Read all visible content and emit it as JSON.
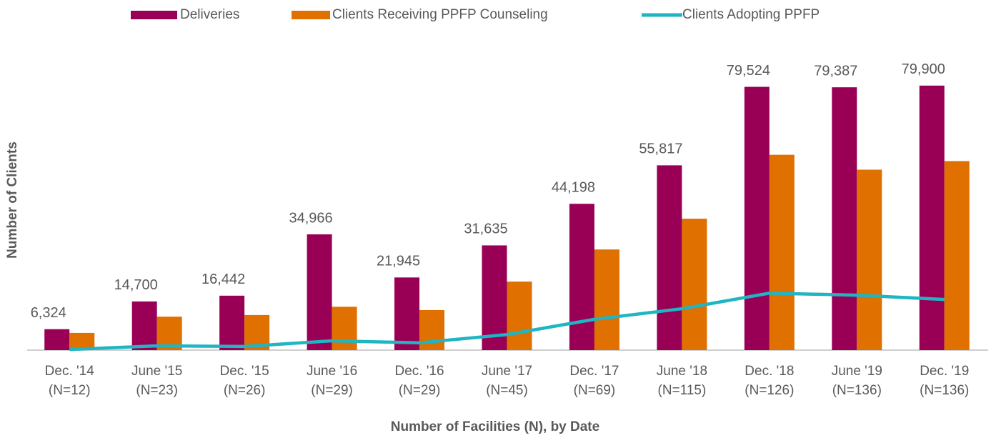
{
  "chart_data": {
    "type": "bar",
    "xlabel": "Number of Facilities (N), by Date",
    "ylabel": "Number of Clients",
    "categories": [
      [
        "Dec. '14",
        "(N=12)"
      ],
      [
        "June '15",
        "(N=23)"
      ],
      [
        "Dec. '15",
        "(N=26)"
      ],
      [
        "June '16",
        "(N=29)"
      ],
      [
        "Dec. '16",
        "(N=29)"
      ],
      [
        "June '17",
        "(N=45)"
      ],
      [
        "Dec. '17",
        "(N=69)"
      ],
      [
        "June '18",
        "(N=115)"
      ],
      [
        "Dec. '18",
        "(N=126)"
      ],
      [
        "June '19",
        "(N=136)"
      ],
      [
        "Dec. '19",
        "(N=136)"
      ]
    ],
    "series": [
      {
        "name": "Deliveries",
        "kind": "bar",
        "color": "#990055",
        "values": [
          6324,
          14700,
          16442,
          34966,
          21945,
          31635,
          44198,
          55817,
          79524,
          79387,
          79900
        ],
        "value_labels": [
          "6,324",
          "14,700",
          "16,442",
          "34,966",
          "21,945",
          "31,635",
          "44,198",
          "55,817",
          "79,524",
          "79,387",
          "79,900"
        ]
      },
      {
        "name": "Clients Receiving PPFP Counseling",
        "kind": "bar",
        "color": "#e07000",
        "values": [
          5200,
          10100,
          10600,
          13100,
          12100,
          20700,
          30400,
          39700,
          59000,
          54500,
          57100
        ]
      },
      {
        "name": "Clients Adopting PPFP",
        "kind": "line",
        "color": "#1fb5c2",
        "values": [
          200,
          1300,
          1100,
          2800,
          2200,
          4700,
          9300,
          12500,
          17200,
          16600,
          15300
        ]
      }
    ],
    "ylim": [
      0,
      90000
    ],
    "grid": false,
    "legend": "top"
  }
}
